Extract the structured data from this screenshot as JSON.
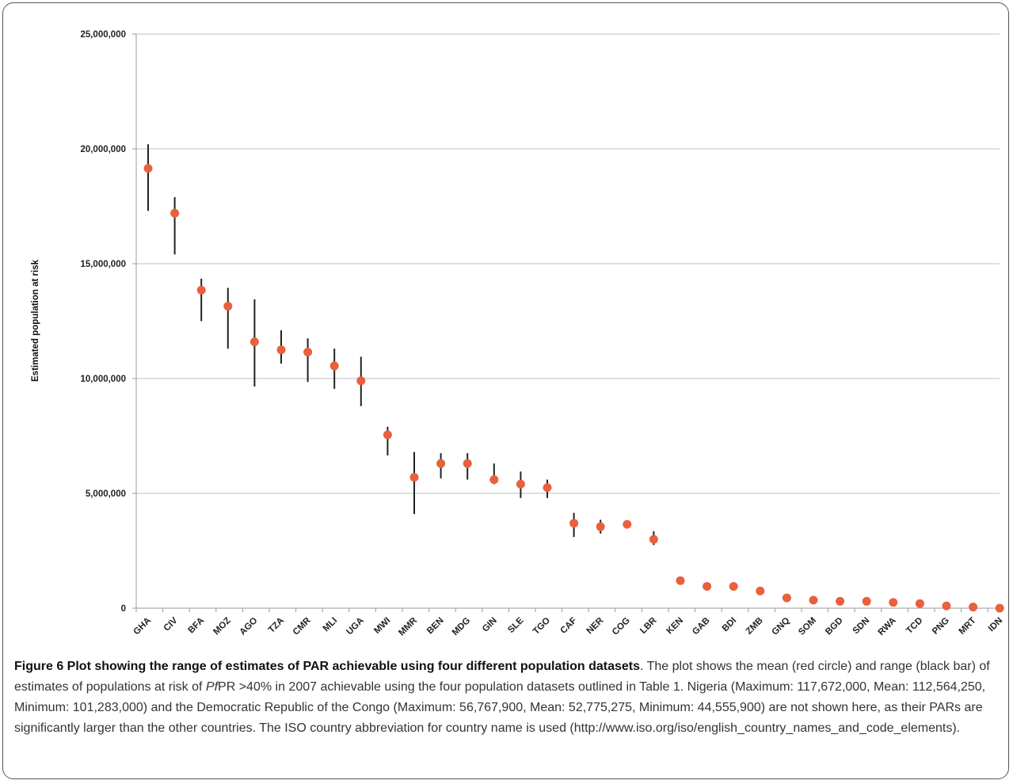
{
  "chart_data": {
    "type": "scatter",
    "ylabel": "Estimated population at risk",
    "ylim": [
      0,
      25000000
    ],
    "yticks": [
      0,
      5000000,
      10000000,
      15000000,
      20000000,
      25000000
    ],
    "ytick_labels": [
      "0",
      "5,000,000",
      "10,000,000",
      "15,000,000",
      "20,000,000",
      "25,000,000"
    ],
    "grid": "horizontal",
    "mean_color": "#e8613c",
    "range_color": "#222222",
    "grid_color": "#bfbfbf",
    "categories": [
      "GHA",
      "CIV",
      "BFA",
      "MOZ",
      "AGO",
      "TZA",
      "CMR",
      "MLI",
      "UGA",
      "MWI",
      "MMR",
      "BEN",
      "MDG",
      "GIN",
      "SLE",
      "TGO",
      "CAF",
      "NER",
      "COG",
      "LBR",
      "KEN",
      "GAB",
      "BDI",
      "ZMB",
      "GNQ",
      "SOM",
      "BGD",
      "SDN",
      "RWA",
      "TCD",
      "PNG",
      "MRT",
      "IDN"
    ],
    "mean": [
      19150000,
      17200000,
      13850000,
      13150000,
      11600000,
      11250000,
      11150000,
      10550000,
      9900000,
      7550000,
      5700000,
      6300000,
      6300000,
      5600000,
      5400000,
      5250000,
      3700000,
      3550000,
      3650000,
      3000000,
      1200000,
      950000,
      950000,
      750000,
      450000,
      350000,
      300000,
      300000,
      250000,
      200000,
      100000,
      50000,
      0
    ],
    "min": [
      17300000,
      15400000,
      12500000,
      11300000,
      9650000,
      10650000,
      9850000,
      9550000,
      8800000,
      6650000,
      4100000,
      5650000,
      5600000,
      5400000,
      4800000,
      4800000,
      3100000,
      3250000,
      3500000,
      2750000,
      1200000,
      950000,
      950000,
      750000,
      450000,
      350000,
      300000,
      300000,
      250000,
      200000,
      100000,
      50000,
      0
    ],
    "max": [
      20200000,
      17900000,
      14350000,
      13950000,
      13450000,
      12100000,
      11750000,
      11300000,
      10950000,
      7900000,
      6800000,
      6750000,
      6750000,
      6300000,
      5950000,
      5600000,
      4150000,
      3850000,
      3800000,
      3350000,
      1200000,
      950000,
      950000,
      750000,
      450000,
      350000,
      300000,
      300000,
      250000,
      200000,
      100000,
      50000,
      0
    ]
  },
  "caption": {
    "bold": "Figure 6 Plot showing the range of estimates of PAR achievable using four different population datasets",
    "text1": ". The plot shows the mean (red circle) and range (black bar) of estimates of populations at risk of ",
    "italic": "Pf",
    "text2": "PR >40% in 2007 achievable using the four population datasets outlined in Table 1. Nigeria (Maximum: 117,672,000, Mean: 112,564,250, Minimum: 101,283,000) and the Democratic Republic of the Congo (Maximum: 56,767,900, Mean: 52,775,275, Minimum: 44,555,900) are not shown here, as their PARs are significantly larger than the other countries. The ISO country abbreviation for country name is used (http://www.iso.org/iso/english_country_names_and_code_elements)."
  }
}
